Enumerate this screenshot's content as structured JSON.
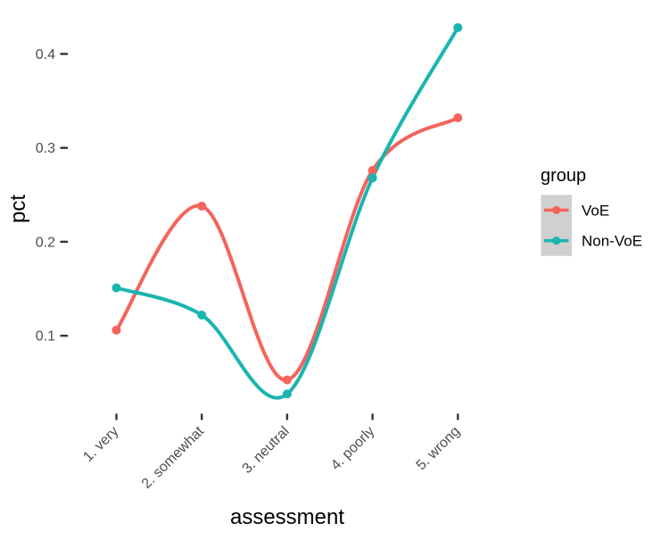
{
  "chart_data": {
    "type": "line",
    "title": "",
    "xlabel": "assessment",
    "ylabel": "pct",
    "categories": [
      "1. very",
      "2. somewhat",
      "3. neutral",
      "4. poorly",
      "5. wrong"
    ],
    "series": [
      {
        "name": "VoE",
        "color": "#F4645C",
        "values": [
          0.106,
          0.238,
          0.053,
          0.276,
          0.332
        ]
      },
      {
        "name": "Non-VoE",
        "color": "#1AB5B0",
        "values": [
          0.151,
          0.122,
          0.038,
          0.268,
          0.428
        ]
      }
    ],
    "yticks": [
      0.1,
      0.2,
      0.3,
      0.4
    ],
    "ylim": [
      0.017,
      0.446
    ],
    "smooth": true,
    "grid": false,
    "points": true,
    "x_tick_angle": 45,
    "legend": {
      "title": "group",
      "position": "right",
      "key_fill": "#D0D0D0"
    },
    "style": {
      "tick_label_color": "#4D4D4D",
      "tick_mark_color": "#333333",
      "title_color": "#000000",
      "background": "#FFFFFF",
      "line_width": 4,
      "point_radius": 5
    }
  }
}
